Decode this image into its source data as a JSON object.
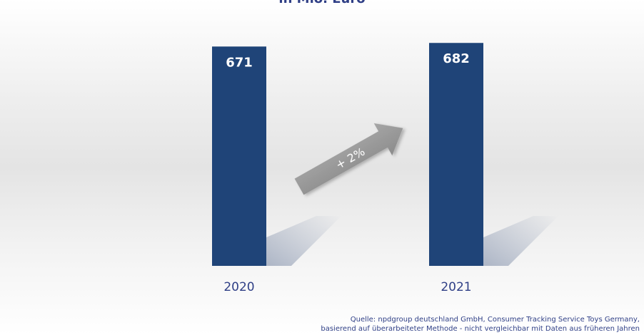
{
  "chart_data": {
    "type": "bar",
    "subtitle": "in Mio. Euro",
    "categories": [
      "2020",
      "2021"
    ],
    "values": [
      671,
      682
    ],
    "ylim": [
      0,
      700
    ],
    "grid": false,
    "annotations": [
      {
        "text": "+ 2%",
        "from": "2020",
        "to": "2021"
      }
    ],
    "colors": {
      "bar": "#1f4478",
      "bar_label": "#ffffff",
      "category_label": "#2f3f86",
      "arrow": "#9b9b9b",
      "shadow": "#a9b2c3"
    }
  },
  "source": {
    "line1": "Quelle: npdgroup deutschland GmbH, Consumer Tracking Service Toys Germany,",
    "line2": "basierend auf überarbeiteter Methode - nicht vergleichbar mit Daten aus früheren Jahren"
  }
}
